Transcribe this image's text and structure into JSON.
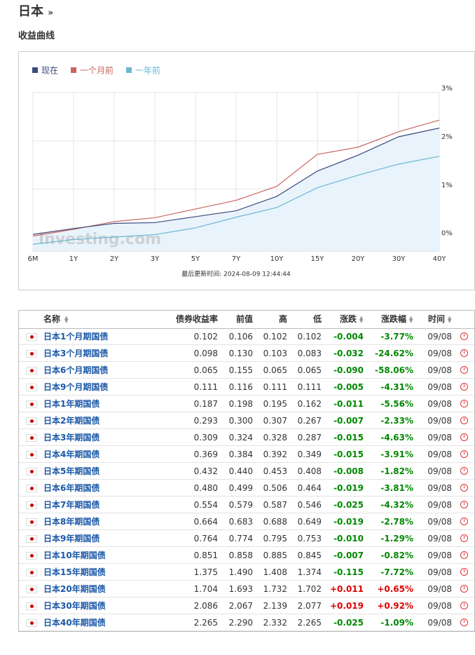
{
  "header": {
    "title": "日本",
    "section": "收益曲线"
  },
  "chart_data": {
    "type": "line",
    "categories": [
      "6M",
      "1Y",
      "2Y",
      "3Y",
      "5Y",
      "7Y",
      "10Y",
      "15Y",
      "20Y",
      "30Y",
      "40Y"
    ],
    "series": [
      {
        "name": "现在",
        "color": "#3d4a7e",
        "values": [
          0.065,
          0.187,
          0.293,
          0.309,
          0.432,
          0.554,
          0.851,
          1.375,
          1.704,
          2.086,
          2.265
        ]
      },
      {
        "name": "一个月前",
        "color": "#c9665f",
        "values": [
          0.03,
          0.17,
          0.33,
          0.41,
          0.59,
          0.77,
          1.06,
          1.72,
          1.87,
          2.19,
          2.43
        ]
      },
      {
        "name": "一年前",
        "color": "#6bb7d2",
        "values": [
          -0.14,
          -0.04,
          0.01,
          0.06,
          0.2,
          0.42,
          0.62,
          1.03,
          1.29,
          1.52,
          1.68
        ]
      }
    ],
    "ylim": [
      -0.28,
      3
    ],
    "yticks": [
      {
        "value": 0,
        "label": "0%"
      },
      {
        "value": 1,
        "label": "1%"
      },
      {
        "value": 2,
        "label": "2%"
      },
      {
        "value": 3,
        "label": "3%"
      }
    ],
    "grid": true,
    "area_color": "#e9f3fc",
    "watermark": "Investing.com",
    "footnote": "最后更新时间: 2024-08-09 12:44:44"
  },
  "table": {
    "headers": [
      "名称",
      "债券收益率",
      "前值",
      "高",
      "低",
      "涨跌",
      "涨跌幅",
      "时间"
    ],
    "rows": [
      [
        "日本1个月期国债",
        "0.102",
        "0.106",
        "0.102",
        "0.102",
        "-0.004",
        "-3.77%",
        "09/08"
      ],
      [
        "日本3个月期国债",
        "0.098",
        "0.130",
        "0.103",
        "0.083",
        "-0.032",
        "-24.62%",
        "09/08"
      ],
      [
        "日本6个月期国债",
        "0.065",
        "0.155",
        "0.065",
        "0.065",
        "-0.090",
        "-58.06%",
        "09/08"
      ],
      [
        "日本9个月期国债",
        "0.111",
        "0.116",
        "0.111",
        "0.111",
        "-0.005",
        "-4.31%",
        "09/08"
      ],
      [
        "日本1年期国债",
        "0.187",
        "0.198",
        "0.195",
        "0.162",
        "-0.011",
        "-5.56%",
        "09/08"
      ],
      [
        "日本2年期国债",
        "0.293",
        "0.300",
        "0.307",
        "0.267",
        "-0.007",
        "-2.33%",
        "09/08"
      ],
      [
        "日本3年期国债",
        "0.309",
        "0.324",
        "0.328",
        "0.287",
        "-0.015",
        "-4.63%",
        "09/08"
      ],
      [
        "日本4年期国债",
        "0.369",
        "0.384",
        "0.392",
        "0.349",
        "-0.015",
        "-3.91%",
        "09/08"
      ],
      [
        "日本5年期国债",
        "0.432",
        "0.440",
        "0.453",
        "0.408",
        "-0.008",
        "-1.82%",
        "09/08"
      ],
      [
        "日本6年期国债",
        "0.480",
        "0.499",
        "0.506",
        "0.464",
        "-0.019",
        "-3.81%",
        "09/08"
      ],
      [
        "日本7年期国债",
        "0.554",
        "0.579",
        "0.587",
        "0.546",
        "-0.025",
        "-4.32%",
        "09/08"
      ],
      [
        "日本8年期国债",
        "0.664",
        "0.683",
        "0.688",
        "0.649",
        "-0.019",
        "-2.78%",
        "09/08"
      ],
      [
        "日本9年期国债",
        "0.764",
        "0.774",
        "0.795",
        "0.753",
        "-0.010",
        "-1.29%",
        "09/08"
      ],
      [
        "日本10年期国债",
        "0.851",
        "0.858",
        "0.885",
        "0.845",
        "-0.007",
        "-0.82%",
        "09/08"
      ],
      [
        "日本15年期国债",
        "1.375",
        "1.490",
        "1.408",
        "1.374",
        "-0.115",
        "-7.72%",
        "09/08"
      ],
      [
        "日本20年期国债",
        "1.704",
        "1.693",
        "1.732",
        "1.702",
        "+0.011",
        "+0.65%",
        "09/08"
      ],
      [
        "日本30年期国债",
        "2.086",
        "2.067",
        "2.139",
        "2.077",
        "+0.019",
        "+0.92%",
        "09/08"
      ],
      [
        "日本40年期国债",
        "2.265",
        "2.290",
        "2.332",
        "2.265",
        "-0.025",
        "-1.09%",
        "09/08"
      ]
    ]
  }
}
